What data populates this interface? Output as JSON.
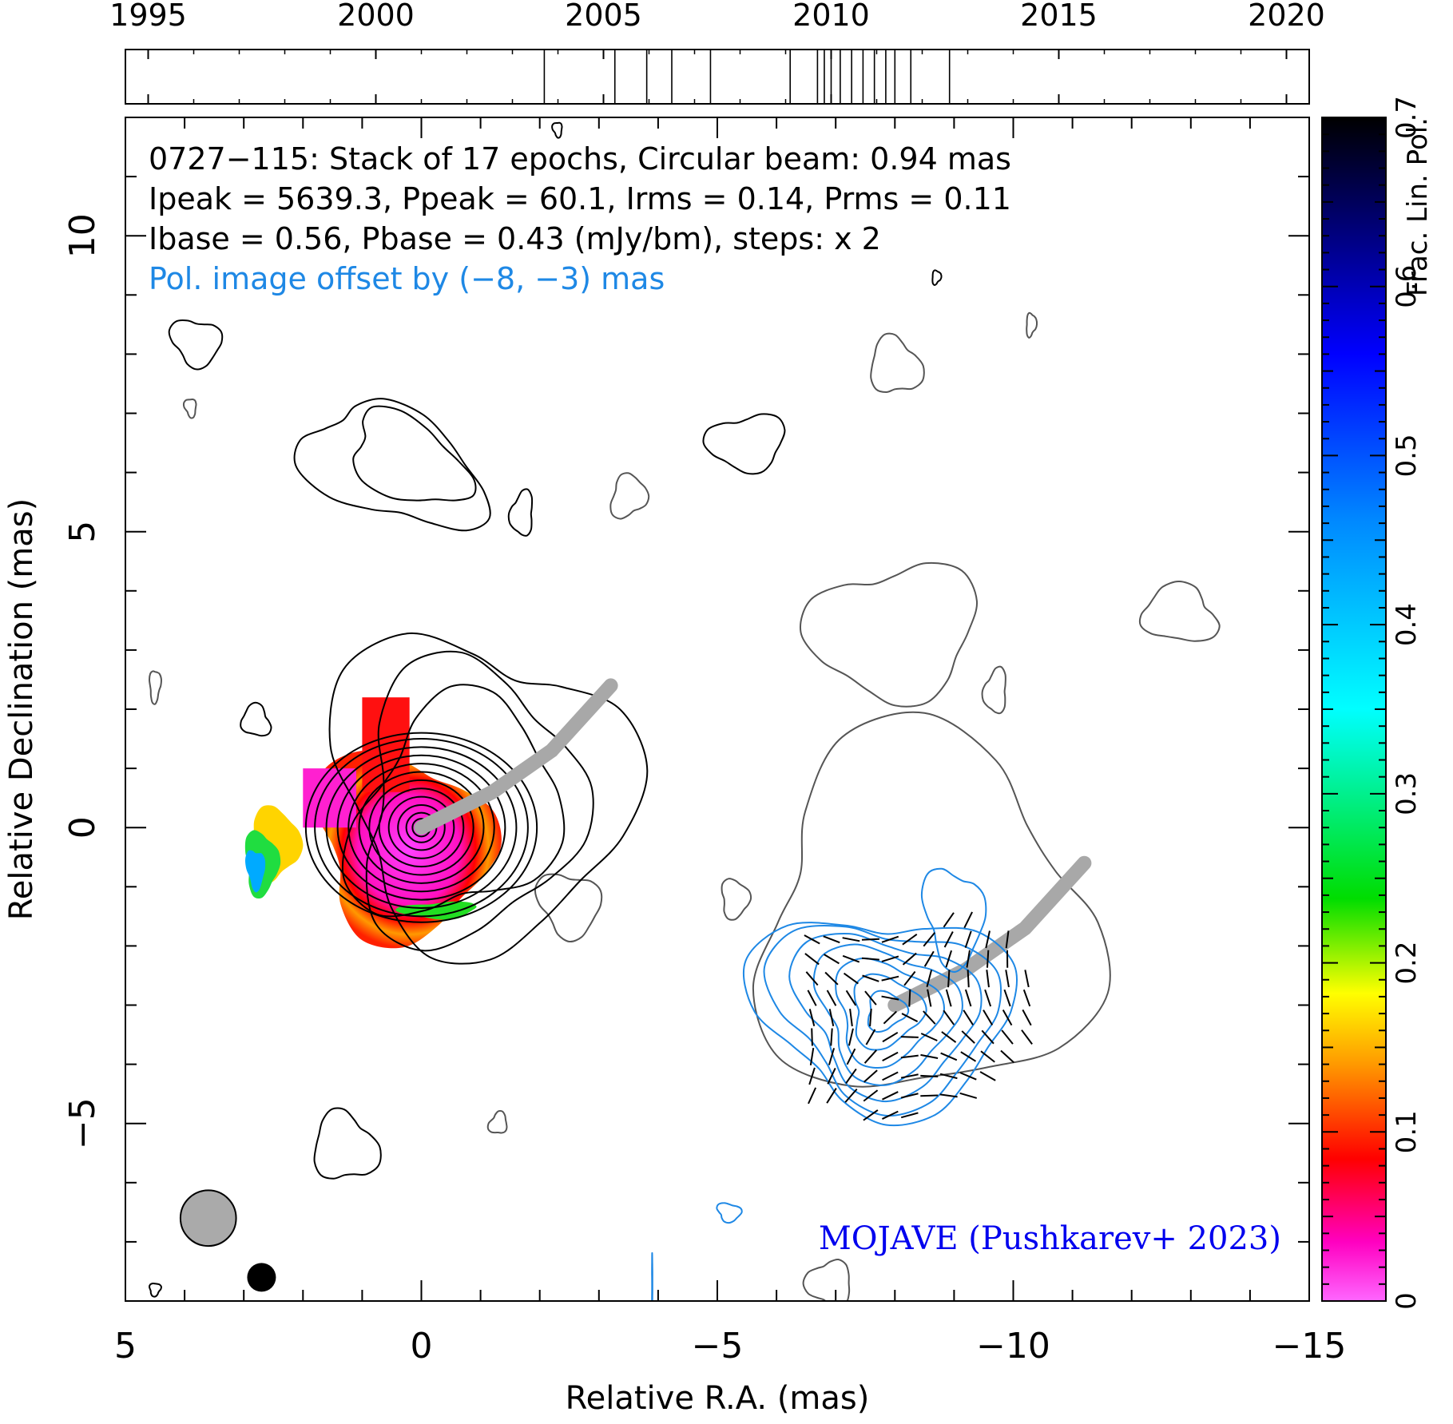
{
  "chart_data": {
    "type": "heatmap",
    "timeline": {
      "tick_labels": [
        "1995",
        "2000",
        "2005",
        "2010",
        "2015",
        "2020"
      ],
      "tick_values": [
        1995,
        2000,
        2005,
        2010,
        2015,
        2020
      ],
      "range": [
        1994.5,
        2020.5
      ],
      "epochs": [
        2003.7,
        2005.25,
        2005.95,
        2006.5,
        2007.35,
        2009.1,
        2009.7,
        2009.85,
        2010.0,
        2010.2,
        2010.45,
        2010.7,
        2010.95,
        2011.2,
        2011.4,
        2011.75,
        2012.6
      ]
    },
    "annotations": {
      "line1": "0727−115: Stack of 17 epochs, Circular beam: 0.94 mas",
      "line2": "Ipeak = 5639.3, Ppeak = 60.1, Irms = 0.14, Prms = 0.11",
      "line3": "Ibase = 0.56, Pbase = 0.43 (mJy/bm), steps: x 2",
      "line4": "Pol. image offset by (−8, −3) mas",
      "credit": "MOJAVE (Pushkarev+ 2023)"
    },
    "axes": {
      "xlabel": "Relative R.A. (mas)",
      "ylabel": "Relative Declination (mas)",
      "xlim": [
        5,
        -15
      ],
      "ylim": [
        -8,
        12
      ],
      "x_tick_values": [
        5,
        0,
        -5,
        -10,
        -15
      ],
      "x_tick_labels": [
        "5",
        "0",
        "−5",
        "−10",
        "−15"
      ],
      "y_tick_values": [
        -5,
        0,
        5,
        10
      ],
      "y_tick_labels": [
        "−5",
        "0",
        "5",
        "10"
      ]
    },
    "colorbar": {
      "label": "Frac. Lin. Pol.",
      "range": [
        0,
        0.7
      ],
      "tick_values": [
        0,
        0.1,
        0.2,
        0.3,
        0.4,
        0.5,
        0.6,
        0.7
      ],
      "tick_labels": [
        "0",
        "0.1",
        "0.2",
        "0.3",
        "0.4",
        "0.5",
        "0.6",
        "0.7"
      ]
    },
    "beam": {
      "x": 3.6,
      "y": -6.6,
      "diameter_mas": 0.94
    },
    "total_intensity_core": {
      "x": 0,
      "y": 0
    },
    "contour_radii_mas": [
      0.15,
      0.25,
      0.38,
      0.52,
      0.66,
      0.8,
      0.94,
      1.08,
      1.22,
      1.36,
      1.5,
      1.6
    ],
    "pol_core": {
      "x": -8.0,
      "y": -3.0
    },
    "pol_contour_radii_mas": [
      0.3,
      0.55,
      0.8,
      1.05,
      1.3,
      1.55,
      1.75
    ],
    "jet_ridge_I": [
      [
        0,
        0
      ],
      [
        -1.2,
        0.6
      ],
      [
        -2.2,
        1.3
      ],
      [
        -3.2,
        2.4
      ]
    ],
    "jet_ridge_P": [
      [
        -8,
        -3
      ],
      [
        -9.2,
        -2.4
      ],
      [
        -10.2,
        -1.7
      ],
      [
        -11.2,
        -0.6
      ]
    ],
    "colors": {
      "contours": "#000000",
      "grey_contours": "#555555",
      "pol_contours": "#1e88e5",
      "ridge": "#a8a8a8",
      "credit": "#0000ee",
      "offset_text": "#1e88e5"
    }
  }
}
